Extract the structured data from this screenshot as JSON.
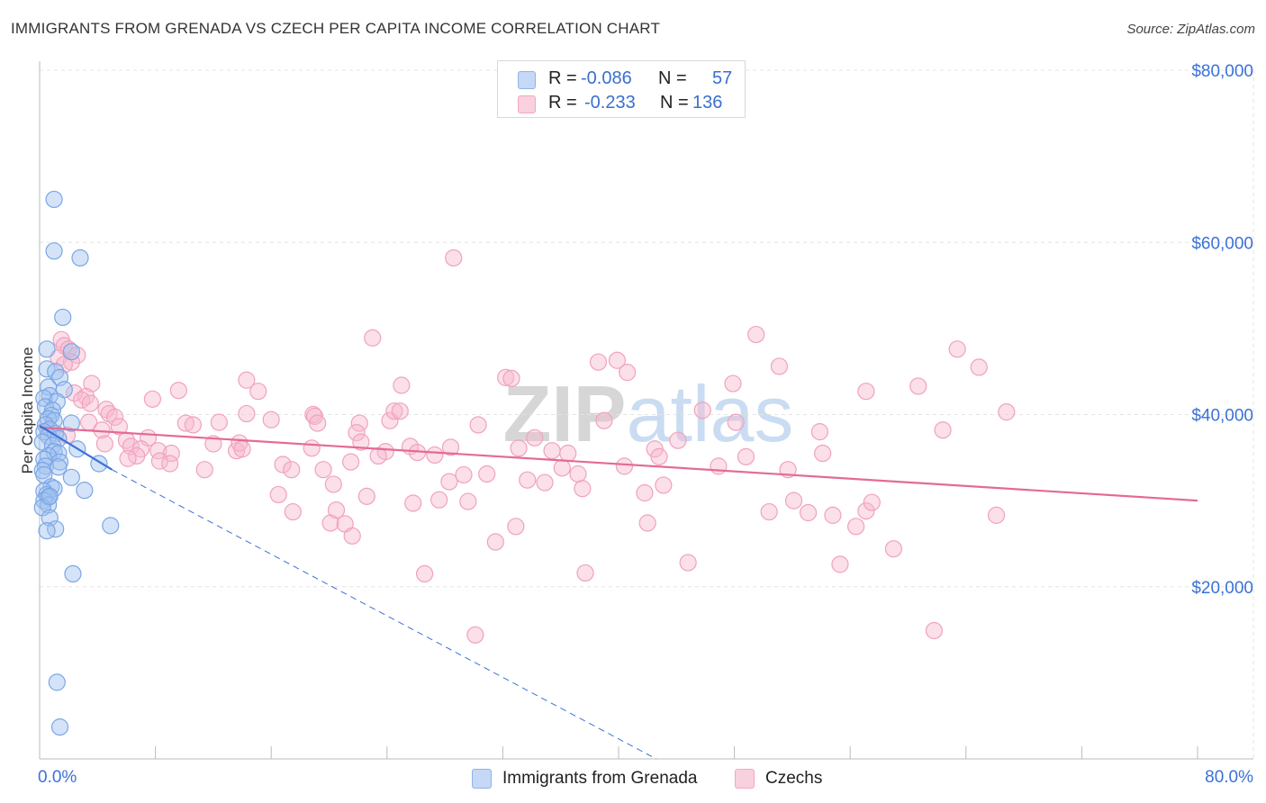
{
  "title": "IMMIGRANTS FROM GRENADA VS CZECH PER CAPITA INCOME CORRELATION CHART",
  "source": "Source: ZipAtlas.com",
  "watermark": "ZIPatlas",
  "legend_top": [
    {
      "r_label": "R =",
      "r_value": "-0.086",
      "n_label": "N =",
      "n_value": "57",
      "color": "#8fb3ea"
    },
    {
      "r_label": "R =",
      "r_value": "-0.233",
      "n_label": "N =",
      "n_value": "136",
      "color": "#f2a8c0"
    }
  ],
  "legend_bottom": [
    {
      "label": "Immigrants from Grenada",
      "color": "#8fb3ea"
    },
    {
      "label": "Czechs",
      "color": "#f2a8c0"
    }
  ],
  "chart_data": {
    "type": "scatter",
    "title": "IMMIGRANTS FROM GRENADA VS CZECH PER CAPITA INCOME CORRELATION CHART",
    "xlabel": "",
    "ylabel": "Per Capita Income",
    "xlim": [
      0,
      80
    ],
    "ylim": [
      0,
      80000
    ],
    "x_tick_labels": [
      "0.0%",
      "80.0%"
    ],
    "y_tick_values": [
      20000,
      40000,
      60000,
      80000
    ],
    "y_tick_labels": [
      "$20,000",
      "$40,000",
      "$60,000",
      "$80,000"
    ],
    "grid": true,
    "series": [
      {
        "name": "Immigrants from Grenada",
        "color": "#7aa6e6",
        "trend_color": "#3a72d8",
        "trend": {
          "x0": 0,
          "y0": 38700,
          "x1": 5,
          "y1": 33600,
          "dash_to_x": 42.6
        },
        "points": [
          [
            1.0,
            65000
          ],
          [
            1.0,
            59000
          ],
          [
            2.8,
            58200
          ],
          [
            1.6,
            51300
          ],
          [
            0.5,
            47600
          ],
          [
            2.2,
            47300
          ],
          [
            0.5,
            45300
          ],
          [
            1.1,
            45000
          ],
          [
            1.4,
            44300
          ],
          [
            0.6,
            43200
          ],
          [
            1.7,
            42900
          ],
          [
            0.7,
            42200
          ],
          [
            0.3,
            41900
          ],
          [
            1.2,
            41500
          ],
          [
            0.4,
            40900
          ],
          [
            0.9,
            40500
          ],
          [
            0.8,
            39900
          ],
          [
            0.6,
            39500
          ],
          [
            1.0,
            39300
          ],
          [
            2.2,
            39000
          ],
          [
            0.4,
            38800
          ],
          [
            0.7,
            38300
          ],
          [
            0.3,
            38000
          ],
          [
            1.1,
            37800
          ],
          [
            0.6,
            37500
          ],
          [
            1.3,
            37200
          ],
          [
            0.2,
            36800
          ],
          [
            0.9,
            36400
          ],
          [
            2.6,
            36000
          ],
          [
            1.0,
            35700
          ],
          [
            1.3,
            35500
          ],
          [
            0.6,
            35200
          ],
          [
            0.3,
            34800
          ],
          [
            1.4,
            34500
          ],
          [
            4.1,
            34300
          ],
          [
            0.4,
            34000
          ],
          [
            1.3,
            33900
          ],
          [
            0.2,
            33500
          ],
          [
            0.3,
            33000
          ],
          [
            2.2,
            32700
          ],
          [
            0.8,
            31600
          ],
          [
            1.0,
            31400
          ],
          [
            0.3,
            31100
          ],
          [
            3.1,
            31200
          ],
          [
            0.5,
            30700
          ],
          [
            0.6,
            30400
          ],
          [
            0.3,
            30000
          ],
          [
            0.6,
            29500
          ],
          [
            0.2,
            29200
          ],
          [
            0.7,
            28000
          ],
          [
            1.1,
            26700
          ],
          [
            0.5,
            26500
          ],
          [
            4.9,
            27100
          ],
          [
            2.3,
            21500
          ],
          [
            1.2,
            8900
          ],
          [
            1.4,
            3700
          ],
          [
            0.7,
            30500
          ]
        ]
      },
      {
        "name": "Czechs",
        "color": "#f2a8c0",
        "trend_color": "#e46a98",
        "trend": {
          "x0": 0,
          "y0": 38500,
          "x1": 80,
          "y1": 30000
        },
        "points": [
          [
            1.5,
            48700
          ],
          [
            1.7,
            48000
          ],
          [
            2.0,
            47600
          ],
          [
            2.6,
            46900
          ],
          [
            1.3,
            46600
          ],
          [
            2.2,
            46100
          ],
          [
            1.7,
            45800
          ],
          [
            3.6,
            43600
          ],
          [
            2.4,
            42500
          ],
          [
            3.2,
            42100
          ],
          [
            2.9,
            41700
          ],
          [
            3.5,
            41300
          ],
          [
            4.6,
            40600
          ],
          [
            4.8,
            40100
          ],
          [
            5.2,
            39700
          ],
          [
            3.4,
            39100
          ],
          [
            5.5,
            38600
          ],
          [
            4.3,
            38200
          ],
          [
            1.9,
            37600
          ],
          [
            7.5,
            37300
          ],
          [
            6.0,
            37000
          ],
          [
            4.5,
            36600
          ],
          [
            6.3,
            36300
          ],
          [
            7.0,
            36000
          ],
          [
            8.2,
            35800
          ],
          [
            9.1,
            35500
          ],
          [
            6.7,
            35200
          ],
          [
            6.1,
            34900
          ],
          [
            8.3,
            34600
          ],
          [
            9.0,
            34300
          ],
          [
            11.4,
            33600
          ],
          [
            7.8,
            41800
          ],
          [
            9.6,
            42800
          ],
          [
            10.1,
            39000
          ],
          [
            10.6,
            38800
          ],
          [
            12.0,
            36600
          ],
          [
            12.4,
            39100
          ],
          [
            13.6,
            35800
          ],
          [
            13.8,
            36700
          ],
          [
            14.3,
            44000
          ],
          [
            14.0,
            36000
          ],
          [
            15.1,
            42700
          ],
          [
            14.3,
            40100
          ],
          [
            16.0,
            39400
          ],
          [
            16.8,
            34200
          ],
          [
            17.4,
            33600
          ],
          [
            16.5,
            30700
          ],
          [
            17.5,
            28700
          ],
          [
            18.9,
            40000
          ],
          [
            19.0,
            39800
          ],
          [
            19.2,
            39000
          ],
          [
            18.8,
            36100
          ],
          [
            19.6,
            33600
          ],
          [
            20.3,
            31900
          ],
          [
            20.1,
            27400
          ],
          [
            21.5,
            34500
          ],
          [
            20.5,
            28900
          ],
          [
            21.1,
            27300
          ],
          [
            21.6,
            25900
          ],
          [
            22.1,
            39000
          ],
          [
            21.9,
            37900
          ],
          [
            22.6,
            30500
          ],
          [
            22.2,
            36800
          ],
          [
            23.0,
            48900
          ],
          [
            24.2,
            39300
          ],
          [
            23.9,
            35700
          ],
          [
            23.4,
            35200
          ],
          [
            24.5,
            40400
          ],
          [
            24.9,
            40400
          ],
          [
            25.0,
            43400
          ],
          [
            25.6,
            36300
          ],
          [
            26.1,
            35600
          ],
          [
            25.8,
            29700
          ],
          [
            26.6,
            21500
          ],
          [
            27.3,
            35300
          ],
          [
            27.6,
            30100
          ],
          [
            28.4,
            36200
          ],
          [
            28.3,
            32200
          ],
          [
            29.3,
            33000
          ],
          [
            29.6,
            29900
          ],
          [
            30.1,
            14400
          ],
          [
            30.3,
            38800
          ],
          [
            30.9,
            33100
          ],
          [
            31.5,
            25200
          ],
          [
            32.2,
            44300
          ],
          [
            32.6,
            44200
          ],
          [
            33.1,
            36100
          ],
          [
            32.9,
            27000
          ],
          [
            33.7,
            32400
          ],
          [
            34.2,
            37300
          ],
          [
            34.9,
            32100
          ],
          [
            35.4,
            35800
          ],
          [
            36.1,
            33800
          ],
          [
            36.5,
            35500
          ],
          [
            37.2,
            33100
          ],
          [
            37.5,
            31400
          ],
          [
            37.7,
            21600
          ],
          [
            38.6,
            46100
          ],
          [
            39.0,
            39300
          ],
          [
            39.9,
            46300
          ],
          [
            40.6,
            44900
          ],
          [
            40.4,
            34000
          ],
          [
            41.8,
            30900
          ],
          [
            42.0,
            27400
          ],
          [
            42.5,
            36000
          ],
          [
            42.8,
            35100
          ],
          [
            43.1,
            31800
          ],
          [
            44.1,
            37000
          ],
          [
            44.8,
            22800
          ],
          [
            45.8,
            40500
          ],
          [
            46.9,
            34000
          ],
          [
            47.9,
            43600
          ],
          [
            48.1,
            39100
          ],
          [
            48.8,
            35100
          ],
          [
            49.5,
            49300
          ],
          [
            50.4,
            28700
          ],
          [
            51.1,
            45600
          ],
          [
            51.7,
            33600
          ],
          [
            52.1,
            30000
          ],
          [
            53.1,
            28600
          ],
          [
            53.9,
            38000
          ],
          [
            54.1,
            35500
          ],
          [
            54.8,
            28300
          ],
          [
            55.3,
            22600
          ],
          [
            56.4,
            27000
          ],
          [
            57.1,
            28800
          ],
          [
            57.5,
            29800
          ],
          [
            57.1,
            42700
          ],
          [
            59.0,
            24400
          ],
          [
            60.7,
            43300
          ],
          [
            61.8,
            14900
          ],
          [
            62.4,
            38200
          ],
          [
            63.4,
            47600
          ],
          [
            64.9,
            45500
          ],
          [
            66.1,
            28300
          ],
          [
            66.8,
            40300
          ],
          [
            28.6,
            58200
          ]
        ]
      }
    ]
  }
}
